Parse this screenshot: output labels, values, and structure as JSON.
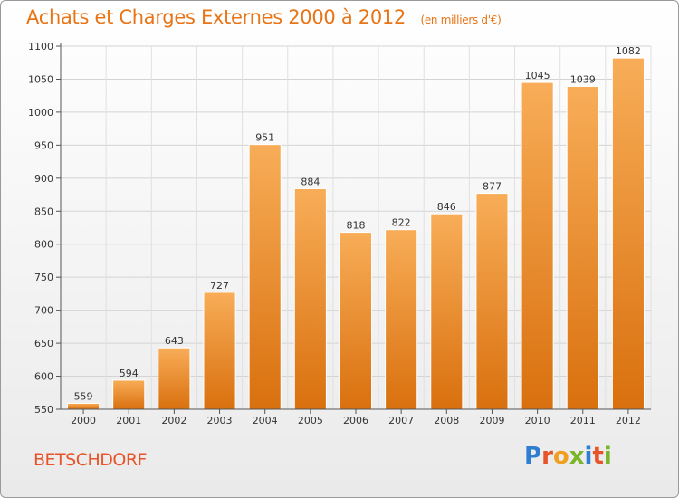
{
  "header": {
    "title": "Achats et Charges Externes 2000 à 2012",
    "subtitle": "(en milliers d'€)"
  },
  "footer": {
    "town": "BETSCHDORF",
    "logo_text": "Proxiti"
  },
  "colors": {
    "bar_light": "#f8ad58",
    "bar_dark": "#d9700e",
    "title": "#e87416",
    "town": "#e8542a"
  },
  "chart_data": {
    "type": "bar",
    "title": "Achats et Charges Externes 2000 à 2012",
    "subtitle": "(en milliers d'€)",
    "xlabel": "",
    "ylabel": "",
    "categories": [
      "2000",
      "2001",
      "2002",
      "2003",
      "2004",
      "2005",
      "2006",
      "2007",
      "2008",
      "2009",
      "2010",
      "2011",
      "2012"
    ],
    "values": [
      559,
      594,
      643,
      727,
      951,
      884,
      818,
      822,
      846,
      877,
      1045,
      1039,
      1082
    ],
    "ylim": [
      550,
      1100
    ],
    "yticks": [
      550,
      600,
      650,
      700,
      750,
      800,
      850,
      900,
      950,
      1000,
      1050,
      1100
    ],
    "grid": true,
    "legend": "none"
  }
}
